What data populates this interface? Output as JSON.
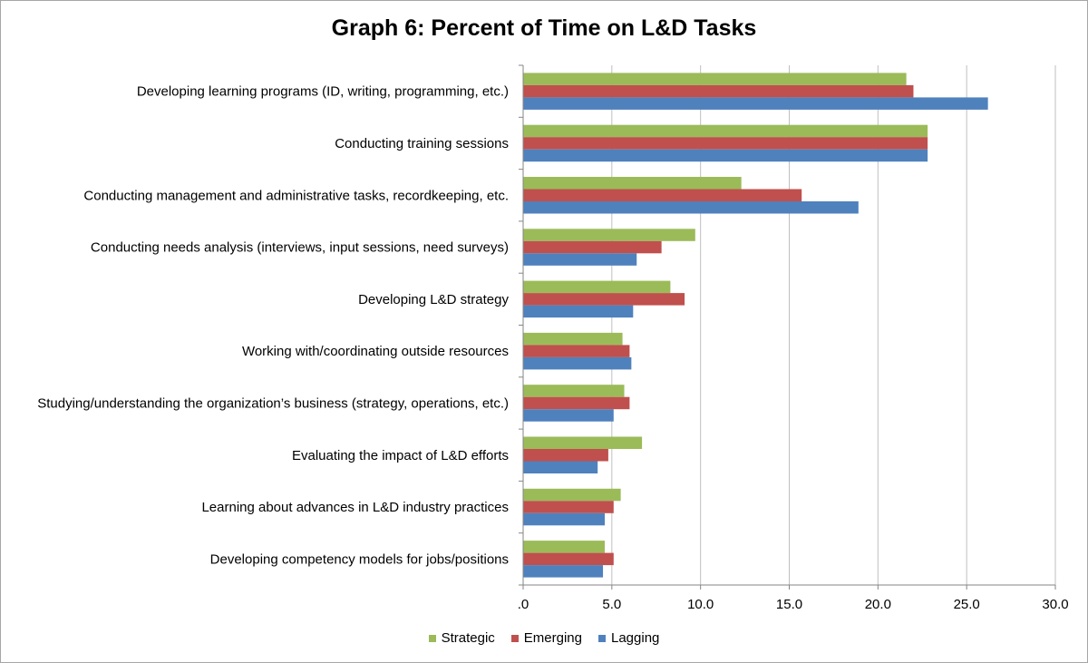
{
  "chart_data": {
    "type": "bar",
    "orientation": "horizontal",
    "title": "Graph 6: Percent of Time on L&D Tasks",
    "xlabel": "",
    "ylabel": "",
    "xlim": [
      0,
      30
    ],
    "ticks": [
      ".0",
      "5.0",
      "10.0",
      "15.0",
      "20.0",
      "25.0",
      "30.0"
    ],
    "tick_values": [
      0,
      5,
      10,
      15,
      20,
      25,
      30
    ],
    "grid": true,
    "legend_position": "bottom",
    "categories": [
      "Developing learning programs (ID, writing, programming, etc.)",
      "Conducting training sessions",
      "Conducting management and administrative tasks, recordkeeping, etc.",
      "Conducting needs analysis (interviews, input sessions, need surveys)",
      "Developing L&D strategy",
      "Working with/coordinating outside resources",
      "Studying/understanding the organization’s business (strategy, operations, etc.)",
      "Evaluating the impact of L&D efforts",
      "Learning about advances in L&D industry practices",
      "Developing competency models for jobs/positions"
    ],
    "series": [
      {
        "name": "Strategic",
        "color": "#9bbb59",
        "values": [
          21.6,
          22.8,
          12.3,
          9.7,
          8.3,
          5.6,
          5.7,
          6.7,
          5.5,
          4.6
        ]
      },
      {
        "name": "Emerging",
        "color": "#c0504d",
        "values": [
          22.0,
          22.8,
          15.7,
          7.8,
          9.1,
          6.0,
          6.0,
          4.8,
          5.1,
          5.1
        ]
      },
      {
        "name": "Lagging",
        "color": "#4f81bd",
        "values": [
          26.2,
          22.8,
          18.9,
          6.4,
          6.2,
          6.1,
          5.1,
          4.2,
          4.6,
          4.5
        ]
      }
    ]
  }
}
